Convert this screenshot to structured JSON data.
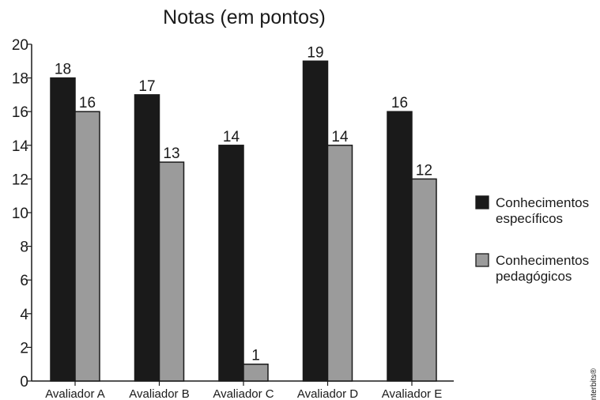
{
  "chart_data": {
    "type": "bar",
    "title": "Notas (em pontos)",
    "categories": [
      "Avaliador A",
      "Avaliador B",
      "Avaliador C",
      "Avaliador D",
      "Avaliador E"
    ],
    "series": [
      {
        "name": "Conhecimentos específicos",
        "legend_lines": [
          "Conhecimentos",
          "específicos"
        ],
        "values": [
          18,
          17,
          14,
          19,
          16
        ],
        "color": "#1a1a1a"
      },
      {
        "name": "Conhecimentos pedagógicos",
        "legend_lines": [
          "Conhecimentos",
          "pedagógicos"
        ],
        "values": [
          16,
          13,
          1,
          14,
          12
        ],
        "color": "#9b9b9b"
      }
    ],
    "ylim": [
      0,
      20
    ],
    "yticks": [
      0,
      2,
      4,
      6,
      8,
      10,
      12,
      14,
      16,
      18,
      20
    ],
    "xlabel": "",
    "ylabel": "",
    "grid": false,
    "legend_position": "right"
  },
  "credit": "Interbits®"
}
